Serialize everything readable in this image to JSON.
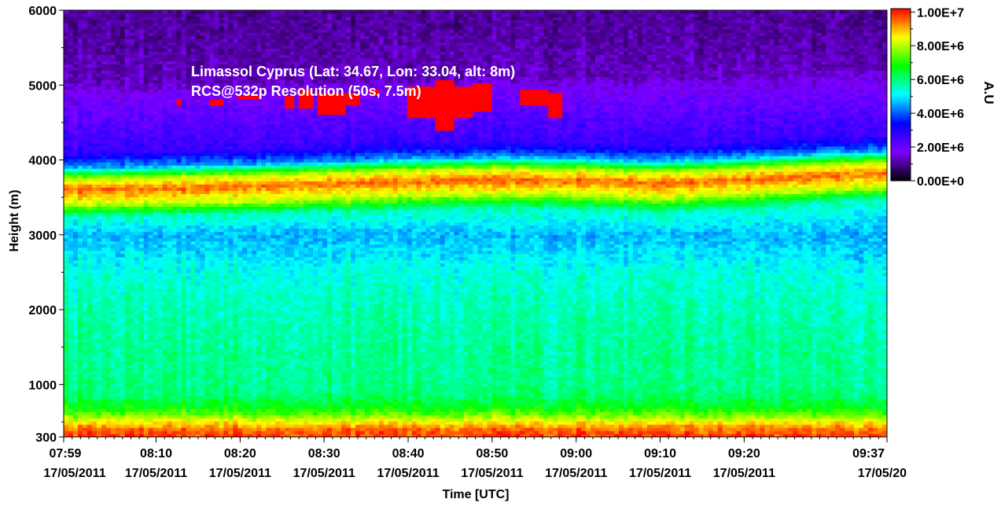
{
  "chart_data": {
    "type": "heatmap",
    "title": "",
    "annotations": [
      "Limassol Cyprus (Lat: 34.67, Lon: 33.04, alt: 8m)",
      "RCS@532p Resolution (50s, 7.5m)"
    ],
    "xlabel": "Time [UTC]",
    "ylabel": "Height (m)",
    "x_range_minutes": [
      479,
      577
    ],
    "xticks": [
      {
        "time": "07:59",
        "date": "17/05/2011",
        "minutes": 479
      },
      {
        "time": "08:10",
        "date": "17/05/2011",
        "minutes": 490
      },
      {
        "time": "08:20",
        "date": "17/05/2011",
        "minutes": 500
      },
      {
        "time": "08:30",
        "date": "17/05/2011",
        "minutes": 510
      },
      {
        "time": "08:40",
        "date": "17/05/2011",
        "minutes": 520
      },
      {
        "time": "08:50",
        "date": "17/05/2011",
        "minutes": 530
      },
      {
        "time": "09:00",
        "date": "17/05/2011",
        "minutes": 540
      },
      {
        "time": "09:10",
        "date": "17/05/2011",
        "minutes": 550
      },
      {
        "time": "09:20",
        "date": "17/05/2011",
        "minutes": 560
      },
      {
        "time": "09:37",
        "date": "17/05/20",
        "minutes": 577
      }
    ],
    "ylim": [
      300,
      6000
    ],
    "yticks": [
      300,
      1000,
      2000,
      3000,
      4000,
      5000,
      6000
    ],
    "colorbar": {
      "label": "A.U",
      "min": 0,
      "max": 10200000,
      "ticks": [
        {
          "value": 10000000,
          "label": "1.00E+7"
        },
        {
          "value": 8000000,
          "label": "8.00E+6"
        },
        {
          "value": 6000000,
          "label": "6.00E+6"
        },
        {
          "value": 4000000,
          "label": "4.00E+6"
        },
        {
          "value": 2000000,
          "label": "2.00E+6"
        },
        {
          "value": 0,
          "label": "0.00E+0"
        }
      ],
      "colormap": [
        "#000000",
        "#8000ff",
        "#0000ff",
        "#00ffff",
        "#00ff00",
        "#ffff00",
        "#ff0000"
      ]
    },
    "profile": [
      {
        "height": 300,
        "value": 9900000
      },
      {
        "height": 400,
        "value": 9500000
      },
      {
        "height": 500,
        "value": 8600000
      },
      {
        "height": 600,
        "value": 7500000
      },
      {
        "height": 700,
        "value": 6700000
      },
      {
        "height": 850,
        "value": 6100000
      },
      {
        "height": 1000,
        "value": 5900000
      },
      {
        "height": 1500,
        "value": 5800000
      },
      {
        "height": 2000,
        "value": 5600000
      },
      {
        "height": 2500,
        "value": 5300000
      },
      {
        "height": 3000,
        "value": 4600000
      },
      {
        "height": 3250,
        "value": 5500000
      },
      {
        "height": 3400,
        "value": 8000000
      },
      {
        "height": 3600,
        "value": 9500000
      },
      {
        "height": 3750,
        "value": 8000000
      },
      {
        "height": 3900,
        "value": 4500000
      },
      {
        "height": 4100,
        "value": 2700000
      },
      {
        "height": 4500,
        "value": 2200000
      },
      {
        "height": 4850,
        "value": 1700000
      },
      {
        "height": 5000,
        "value": 1300000
      },
      {
        "height": 5500,
        "value": 1100000
      },
      {
        "height": 6000,
        "value": 1000000
      }
    ],
    "layer_top_height": [
      {
        "minutes": 479,
        "height": 3600
      },
      {
        "minutes": 490,
        "height": 3620
      },
      {
        "minutes": 500,
        "height": 3650
      },
      {
        "minutes": 510,
        "height": 3680
      },
      {
        "minutes": 520,
        "height": 3720
      },
      {
        "minutes": 530,
        "height": 3740
      },
      {
        "minutes": 540,
        "height": 3730
      },
      {
        "minutes": 550,
        "height": 3690
      },
      {
        "minutes": 560,
        "height": 3740
      },
      {
        "minutes": 570,
        "height": 3800
      },
      {
        "minutes": 577,
        "height": 3830
      }
    ],
    "cloud_patches": [
      {
        "start": 492.5,
        "end": 493.2,
        "base": 4750,
        "top": 4820,
        "value": 10200000
      },
      {
        "start": 496.5,
        "end": 498.0,
        "base": 4730,
        "top": 4830,
        "value": 10200000
      },
      {
        "start": 499.5,
        "end": 502.5,
        "base": 4820,
        "top": 4880,
        "value": 10200000
      },
      {
        "start": 505.5,
        "end": 506.5,
        "base": 4700,
        "top": 4850,
        "value": 10200000
      },
      {
        "start": 507.0,
        "end": 508.5,
        "base": 4680,
        "top": 4950,
        "value": 10200000
      },
      {
        "start": 509.5,
        "end": 512.5,
        "base": 4620,
        "top": 4920,
        "value": 10200000
      },
      {
        "start": 512.0,
        "end": 514.0,
        "base": 4750,
        "top": 4900,
        "value": 10200000
      },
      {
        "start": 515.5,
        "end": 516.5,
        "base": 4850,
        "top": 4950,
        "value": 10200000
      },
      {
        "start": 520.0,
        "end": 523.5,
        "base": 4560,
        "top": 4980,
        "value": 10200000
      },
      {
        "start": 523.0,
        "end": 525.5,
        "base": 4400,
        "top": 5050,
        "value": 10200000
      },
      {
        "start": 525.5,
        "end": 527.5,
        "base": 4550,
        "top": 4980,
        "value": 10200000
      },
      {
        "start": 527.5,
        "end": 530.2,
        "base": 4650,
        "top": 5020,
        "value": 10200000
      },
      {
        "start": 533.5,
        "end": 536.5,
        "base": 4720,
        "top": 4930,
        "value": 10200000
      },
      {
        "start": 536.5,
        "end": 538.5,
        "base": 4580,
        "top": 4920,
        "value": 10200000
      }
    ]
  }
}
